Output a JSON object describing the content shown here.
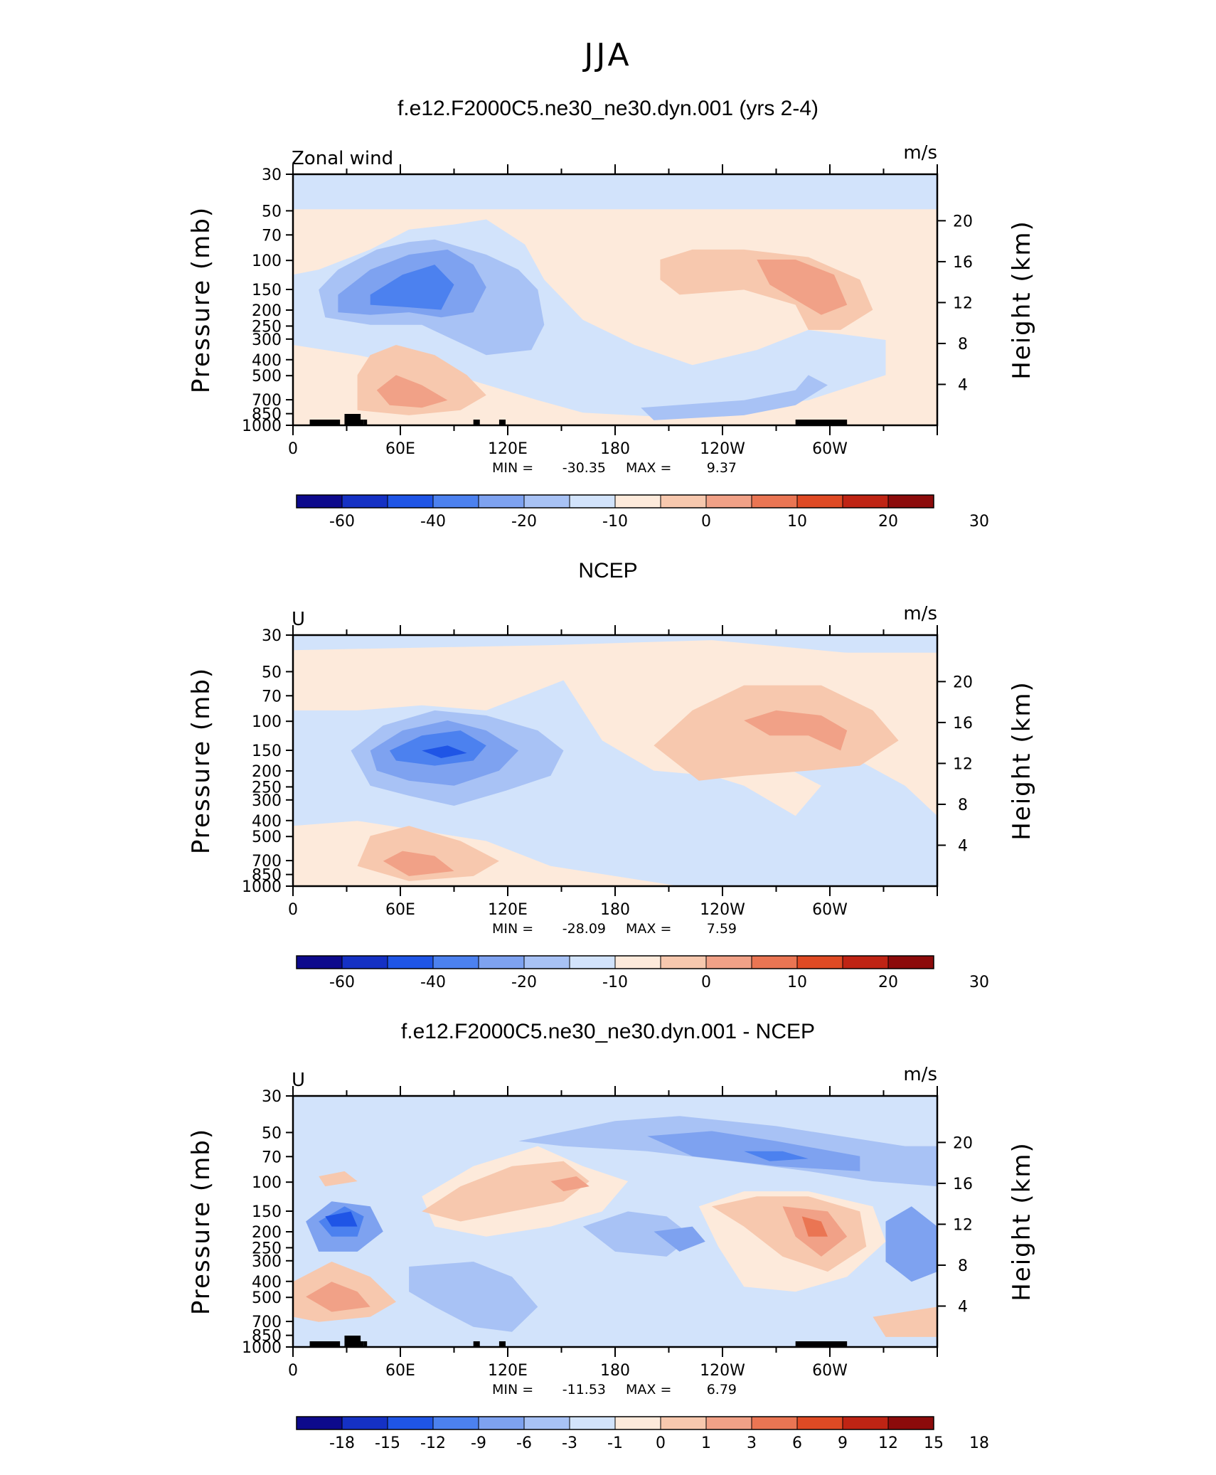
{
  "figure": {
    "title": "JJA",
    "colors": {
      "ramp": [
        "#0d0a8c",
        "#1531c4",
        "#1f55e6",
        "#4c81ef",
        "#7ea2f0",
        "#a8c2f5",
        "#d2e3fb",
        "#fdeadb",
        "#f7c8ae",
        "#f1a187",
        "#ea7553",
        "#df4a24",
        "#bf2414",
        "#8c0b0b"
      ]
    }
  },
  "chart_data": [
    {
      "type": "heatmap",
      "title": "f.e12.F2000C5.ne30_ne30.dyn.001 (yrs 2-4)",
      "left_label": "Zonal wind",
      "units": "m/s",
      "ylabel": "Pressure (mb)",
      "y2label": "Height (km)",
      "x_tick_labels": [
        "0",
        "60E",
        "120E",
        "180",
        "120W",
        "60W"
      ],
      "y_ticks": [
        30,
        50,
        70,
        100,
        150,
        200,
        250,
        300,
        400,
        500,
        700,
        850,
        1000
      ],
      "y2_ticks": [
        4,
        8,
        12,
        16,
        20
      ],
      "xlim": [
        0,
        360
      ],
      "ylim": [
        1000,
        30
      ],
      "ylog": true,
      "stats": {
        "min_label": "MIN =",
        "min": "-30.35",
        "max_label": "MAX =",
        "max": "9.37"
      },
      "colorbar_labels": [
        "-60",
        "-40",
        "-20",
        "-10",
        "0",
        "10",
        "20",
        "30"
      ]
    },
    {
      "type": "heatmap",
      "title": "NCEP",
      "left_label": "U",
      "units": "m/s",
      "ylabel": "Pressure (mb)",
      "y2label": "Height (km)",
      "x_tick_labels": [
        "0",
        "60E",
        "120E",
        "180",
        "120W",
        "60W"
      ],
      "y_ticks": [
        30,
        50,
        70,
        100,
        150,
        200,
        250,
        300,
        400,
        500,
        700,
        850,
        1000
      ],
      "y2_ticks": [
        4,
        8,
        12,
        16,
        20
      ],
      "xlim": [
        0,
        360
      ],
      "ylim": [
        1000,
        30
      ],
      "ylog": true,
      "stats": {
        "min_label": "MIN =",
        "min": "-28.09",
        "max_label": "MAX =",
        "max": "7.59"
      },
      "colorbar_labels": [
        "-60",
        "-40",
        "-20",
        "-10",
        "0",
        "10",
        "20",
        "30"
      ]
    },
    {
      "type": "heatmap",
      "title": "f.e12.F2000C5.ne30_ne30.dyn.001 - NCEP",
      "left_label": "U",
      "units": "m/s",
      "ylabel": "Pressure (mb)",
      "y2label": "Height (km)",
      "x_tick_labels": [
        "0",
        "60E",
        "120E",
        "180",
        "120W",
        "60W"
      ],
      "y_ticks": [
        30,
        50,
        70,
        100,
        150,
        200,
        250,
        300,
        400,
        500,
        700,
        850,
        1000
      ],
      "y2_ticks": [
        4,
        8,
        12,
        16,
        20
      ],
      "xlim": [
        0,
        360
      ],
      "ylim": [
        1000,
        30
      ],
      "ylog": true,
      "stats": {
        "min_label": "MIN =",
        "min": "-11.53",
        "max_label": "MAX =",
        "max": "6.79"
      },
      "colorbar_labels": [
        "-18",
        "-15",
        "-12",
        "-9",
        "-6",
        "-3",
        "-1",
        "0",
        "1",
        "3",
        "6",
        "9",
        "12",
        "15",
        "18"
      ]
    }
  ]
}
